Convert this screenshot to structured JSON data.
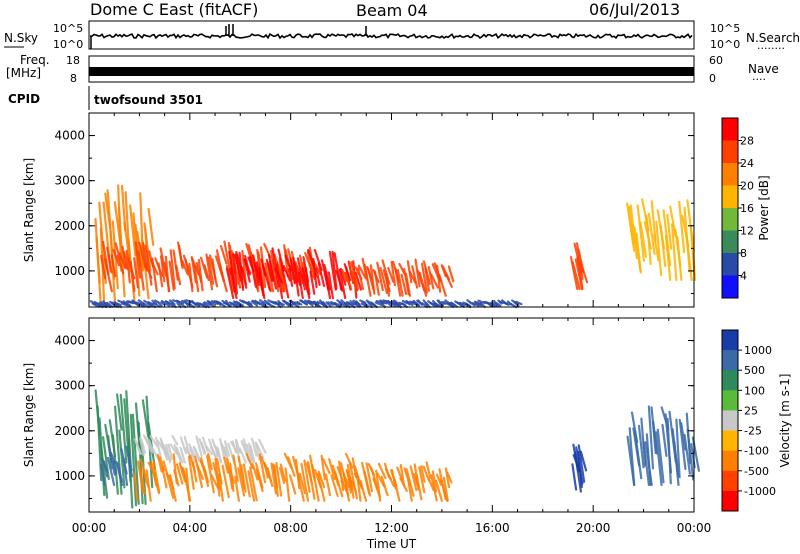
{
  "header": {
    "station": "Dome C East (fitACF)",
    "beam": "Beam 04",
    "date": "06/Jul/2013"
  },
  "top_strip": {
    "left_label": "N.Sky",
    "left_ticks": [
      "10^5",
      "10^0"
    ],
    "right_label": "N.Search",
    "right_ticks": [
      "10^5",
      "10^0"
    ],
    "right_dots": "........"
  },
  "freq_strip": {
    "left_label_line1": "Freq.",
    "left_label_line2": "[MHz]",
    "left_ticks": [
      "18",
      "8"
    ],
    "right_label": "Nave",
    "right_ticks": [
      "60",
      "0"
    ],
    "right_dots": "...."
  },
  "cpid": {
    "label": "CPID",
    "value": "twofsound 3501"
  },
  "chart_data": [
    {
      "type": "heatmap",
      "title": "",
      "xlabel": "",
      "ylabel": "Slant Range [km]",
      "xlim": [
        0,
        24
      ],
      "ylim": [
        200,
        4500
      ],
      "x_tick_labels": [
        "00:00",
        "04:00",
        "08:00",
        "12:00",
        "16:00",
        "20:00",
        "00:00"
      ],
      "y_ticks": [
        1000,
        2000,
        3000,
        4000
      ],
      "colorbar": {
        "label": "Power [dB]",
        "ticks": [
          "4",
          "8",
          "12",
          "16",
          "20",
          "24",
          "28"
        ],
        "colors": [
          "#1010ff",
          "#2a4aa8",
          "#3a8a5a",
          "#72b83a",
          "#ffb400",
          "#ff7f00",
          "#ff4000",
          "#ff0000"
        ],
        "range": [
          0,
          32
        ]
      },
      "regions": [
        {
          "t0": 0.2,
          "t1": 2.4,
          "r0": 300,
          "r1": 2900,
          "value": 20
        },
        {
          "t0": 0.4,
          "t1": 9.0,
          "r0": 550,
          "r1": 1650,
          "value": 27
        },
        {
          "t0": 5.4,
          "t1": 10.6,
          "r0": 400,
          "r1": 1500,
          "value": 30
        },
        {
          "t0": 10.0,
          "t1": 14.3,
          "r0": 450,
          "r1": 1300,
          "value": 26
        },
        {
          "t0": 19.1,
          "t1": 19.5,
          "r0": 600,
          "r1": 1700,
          "value": 26
        },
        {
          "t0": 21.3,
          "t1": 24.0,
          "r0": 800,
          "r1": 2600,
          "value": 18
        },
        {
          "t0": 0.0,
          "t1": 17.0,
          "r0": 200,
          "r1": 350,
          "value": 6
        }
      ]
    },
    {
      "type": "heatmap",
      "title": "",
      "xlabel": "Time UT",
      "ylabel": "Slant Range [km]",
      "xlim": [
        0,
        24
      ],
      "ylim": [
        200,
        4500
      ],
      "x_tick_labels": [
        "00:00",
        "04:00",
        "08:00",
        "12:00",
        "16:00",
        "20:00",
        "00:00"
      ],
      "y_ticks": [
        1000,
        2000,
        3000,
        4000
      ],
      "colorbar": {
        "label": "Velocity [m s-1]",
        "ticks": [
          "1000",
          "500",
          "100",
          "25",
          "-25",
          "-100",
          "-500",
          "-1000"
        ],
        "colors": [
          "#1a3ca8",
          "#3a6aa8",
          "#2e8a5a",
          "#5aba3a",
          "#c8c8c8",
          "#ffb400",
          "#ff8000",
          "#ff4000",
          "#ff0000"
        ],
        "range": [
          -1000,
          1000
        ]
      },
      "regions": [
        {
          "t0": 0.2,
          "t1": 2.4,
          "r0": 300,
          "r1": 2900,
          "value": 300
        },
        {
          "t0": 0.4,
          "t1": 1.6,
          "r0": 800,
          "r1": 1700,
          "value": 500
        },
        {
          "t0": 1.8,
          "t1": 6.8,
          "r0": 1300,
          "r1": 1900,
          "value": 0
        },
        {
          "t0": 1.8,
          "t1": 10.6,
          "r0": 450,
          "r1": 1500,
          "value": -100
        },
        {
          "t0": 10.0,
          "t1": 14.3,
          "r0": 450,
          "r1": 1300,
          "value": -100
        },
        {
          "t0": 19.1,
          "t1": 19.5,
          "r0": 600,
          "r1": 1700,
          "value": 1000
        },
        {
          "t0": 21.3,
          "t1": 24.0,
          "r0": 800,
          "r1": 2600,
          "value": 500
        }
      ]
    }
  ]
}
